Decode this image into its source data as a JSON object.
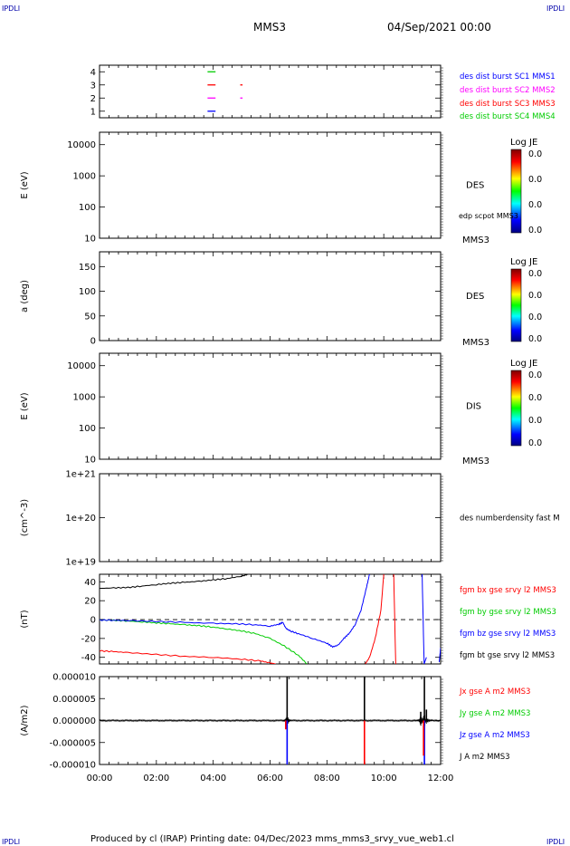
{
  "header": {
    "corner_tl": "IPDLI",
    "corner_tr": "IPDLI",
    "corner_bl": "IPDLI",
    "corner_br": "IPDLI",
    "spacecraft": "MMS3",
    "date": "04/Sep/2021 00:00"
  },
  "footer": {
    "text": "Produced by cl (IRAP)   Printing date: 04/Dec/2023   mms_mms3_srvy_vue_web1.cl"
  },
  "colors": {
    "mms1": "#0000ff",
    "mms2": "#ff00ff",
    "mms3": "#ff0000",
    "mms4": "#00cc00",
    "black": "#000000"
  },
  "chart_data": [
    {
      "type": "scatter",
      "panel": "availability",
      "ylim": [
        0.5,
        4.5
      ],
      "yticks": [
        "1",
        "2",
        "3",
        "4"
      ],
      "legend": [
        {
          "name": "des dist burst SC1 MMS1",
          "color": "#0000ff"
        },
        {
          "name": "des dist burst SC2 MMS2",
          "color": "#ff00ff"
        },
        {
          "name": "des dist burst SC3 MMS3",
          "color": "#ff0000"
        },
        {
          "name": "des dist burst SC4 MMS4",
          "color": "#00cc00"
        }
      ],
      "segments": [
        {
          "sc": 4,
          "start": 3.8,
          "end": 4.05,
          "color": "#00cc00"
        },
        {
          "sc": 3,
          "start": 3.8,
          "end": 4.05,
          "color": "#ff0000"
        },
        {
          "sc": 3,
          "start": 4.95,
          "end": 5.0,
          "color": "#ff0000"
        },
        {
          "sc": 2,
          "start": 3.8,
          "end": 4.05,
          "color": "#ff00ff"
        },
        {
          "sc": 2,
          "start": 4.95,
          "end": 5.0,
          "color": "#ff00ff"
        },
        {
          "sc": 1,
          "start": 3.8,
          "end": 4.05,
          "color": "#0000ff"
        }
      ]
    },
    {
      "type": "heatmap",
      "panel": "des-energy",
      "ylabel": "E (eV)",
      "yscale": "log",
      "ylim": [
        10,
        25000
      ],
      "yticks": [
        "10000",
        "1000",
        "100",
        "10"
      ],
      "right_labels": [
        "DES",
        "edp scpot MMS3",
        "MMS3"
      ],
      "colorbar": {
        "title": "Log JE",
        "values": [
          "0.0",
          "0.0",
          "0.0",
          "0.0"
        ]
      }
    },
    {
      "type": "heatmap",
      "panel": "des-pitch",
      "ylabel": "a (deg)",
      "ylim": [
        0,
        180
      ],
      "yticks": [
        "150",
        "100",
        "50",
        "0"
      ],
      "right_labels": [
        "DES",
        "MMS3"
      ],
      "colorbar": {
        "title": "Log JE",
        "values": [
          "0.0",
          "0.0",
          "0.0",
          "0.0"
        ]
      }
    },
    {
      "type": "heatmap",
      "panel": "dis-energy",
      "ylabel": "E (eV)",
      "yscale": "log",
      "ylim": [
        10,
        25000
      ],
      "yticks": [
        "10000",
        "1000",
        "100",
        "10"
      ],
      "right_labels": [
        "DIS",
        "MMS3"
      ],
      "colorbar": {
        "title": "Log JE",
        "values": [
          "0.0",
          "0.0",
          "0.0",
          "0.0"
        ]
      }
    },
    {
      "type": "line",
      "panel": "density",
      "ylabel": "(cm^-3)",
      "yscale": "log",
      "ylim": [
        1e+19,
        1e+21
      ],
      "yticks": [
        "1e+21",
        "1e+20",
        "1e+19"
      ],
      "right_labels": [
        "des numberdensity fast M"
      ],
      "series": []
    },
    {
      "type": "line",
      "panel": "fgm",
      "ylabel": "(nT)",
      "ylim": [
        -47,
        48
      ],
      "yticks": [
        "40",
        "20",
        "0",
        "-20",
        "-40"
      ],
      "legend": [
        {
          "name": "fgm bx gse srvy l2 MMS3",
          "color": "#ff0000"
        },
        {
          "name": "fgm by gse srvy l2 MMS3",
          "color": "#00cc00"
        },
        {
          "name": "fgm bz gse srvy l2 MMS3",
          "color": "#0000ff"
        },
        {
          "name": "fgm bt gse srvy l2 MMS3",
          "color": "#000000"
        }
      ],
      "series": [
        {
          "color": "#000000",
          "x": [
            0,
            0.5,
            1,
            1.5,
            2,
            2.5,
            3,
            3.5,
            4,
            4.5,
            5,
            5.25
          ],
          "y": [
            33,
            33.5,
            34,
            35.5,
            37,
            38.5,
            39.5,
            40.5,
            42,
            43.5,
            46,
            48
          ]
        },
        {
          "color": "#00cc00",
          "x": [
            0,
            0.5,
            1,
            1.5,
            2,
            2.5,
            3,
            3.5,
            4,
            4.5,
            5,
            5.5,
            6,
            6.5,
            7,
            7.3
          ],
          "y": [
            -0.5,
            -0.8,
            -1.5,
            -2.5,
            -3.5,
            -4.5,
            -5.5,
            -6.5,
            -8,
            -10,
            -12,
            -15,
            -20,
            -28,
            -38,
            -47
          ]
        },
        {
          "color": "#0000ff",
          "x": [
            0,
            0.5,
            1,
            2,
            3,
            4,
            4.8,
            5.5,
            6,
            6.3,
            6.45,
            6.55,
            6.7,
            7,
            7.5,
            8,
            8.2,
            8.4,
            8.6,
            8.8,
            9,
            9.2,
            9.4,
            9.5
          ],
          "y": [
            -0.5,
            -0.7,
            -1,
            -2,
            -3,
            -4,
            -4.5,
            -5.5,
            -7,
            -5,
            -3,
            -9,
            -12,
            -15,
            -20,
            -25,
            -29,
            -27,
            -20,
            -14,
            -5,
            10,
            35,
            48
          ]
        },
        {
          "color": "#0000ff",
          "x": [
            11.35,
            11.42,
            11.5
          ],
          "y": [
            48,
            -47,
            -40
          ]
        },
        {
          "color": "#0000ff",
          "x": [
            11.95,
            12
          ],
          "y": [
            -45,
            -30
          ]
        },
        {
          "color": "#ff0000",
          "x": [
            0,
            0.5,
            1,
            2,
            3,
            4,
            5,
            5.7,
            6,
            6.2
          ],
          "y": [
            -33,
            -34,
            -35,
            -37,
            -39,
            -40,
            -42,
            -44,
            -46,
            -47
          ]
        },
        {
          "color": "#ff0000",
          "x": [
            9.35,
            9.5,
            9.7,
            9.9,
            10.0
          ],
          "y": [
            -47,
            -40,
            -20,
            10,
            48
          ]
        },
        {
          "color": "#ff0000",
          "x": [
            10.35,
            10.42
          ],
          "y": [
            48,
            -47
          ]
        }
      ]
    },
    {
      "type": "line",
      "panel": "current",
      "ylabel": "(A/m2)",
      "ylim": [
        -1e-05,
        1e-05
      ],
      "yticks": [
        "0.000010",
        "0.000005",
        "0.000000",
        "-0.000005",
        "-0.000010"
      ],
      "xlim": [
        0,
        12
      ],
      "xticks": [
        "00:00",
        "02:00",
        "04:00",
        "06:00",
        "08:00",
        "10:00",
        "12:00"
      ],
      "legend": [
        {
          "name": "Jx gse A m2 MMS3",
          "color": "#ff0000"
        },
        {
          "name": "Jy gse A m2 MMS3",
          "color": "#00cc00"
        },
        {
          "name": "Jz gse A m2 MMS3",
          "color": "#0000ff"
        },
        {
          "name": "J A m2 MMS3",
          "color": "#000000"
        }
      ],
      "spikes": [
        {
          "x": 6.6,
          "y": 1e-05,
          "color": "#000000"
        },
        {
          "x": 6.6,
          "y": -1e-05,
          "color": "#0000ff"
        },
        {
          "x": 6.55,
          "y": -2e-06,
          "color": "#ff0000"
        },
        {
          "x": 9.32,
          "y": 1e-05,
          "color": "#000000"
        },
        {
          "x": 9.32,
          "y": -1e-05,
          "color": "#ff0000"
        },
        {
          "x": 11.43,
          "y": 1e-05,
          "color": "#000000"
        },
        {
          "x": 11.43,
          "y": -1e-05,
          "color": "#0000ff"
        },
        {
          "x": 11.4,
          "y": -8e-06,
          "color": "#ff0000"
        },
        {
          "x": 11.3,
          "y": 2e-06,
          "color": "#000000"
        },
        {
          "x": 11.5,
          "y": 2.5e-06,
          "color": "#000000"
        }
      ],
      "noise_level": 2e-07
    }
  ]
}
